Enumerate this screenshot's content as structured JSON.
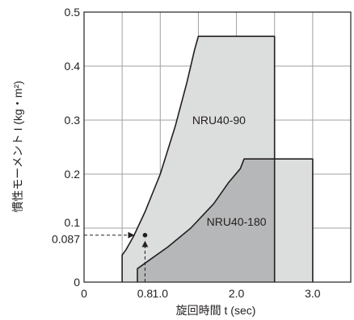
{
  "chart_data": {
    "type": "area",
    "title": "",
    "xlabel": "旋回時間 t (sec)",
    "ylabel": "慣性モーメント I (kg・m²)",
    "xlim": [
      0,
      3.5
    ],
    "ylim": [
      0,
      0.5
    ],
    "grid": true,
    "x_ticks": [
      {
        "value": 0,
        "label": "0"
      },
      {
        "value": 0.8,
        "label": "0.8"
      },
      {
        "value": 1.0,
        "label": "1.0"
      },
      {
        "value": 2.0,
        "label": "2.0"
      },
      {
        "value": 3.0,
        "label": "3.0"
      }
    ],
    "y_ticks": [
      {
        "value": 0,
        "label": "0"
      },
      {
        "value": 0.087,
        "label": "0.087"
      },
      {
        "value": 0.1,
        "label": "0.1"
      },
      {
        "value": 0.2,
        "label": "0.2"
      },
      {
        "value": 0.3,
        "label": "0.3"
      },
      {
        "value": 0.4,
        "label": "0.4"
      },
      {
        "value": 0.5,
        "label": "0.5"
      }
    ],
    "series": [
      {
        "name": "NRU40-90",
        "fill": "#dcdddd",
        "points": [
          [
            0.5,
            0
          ],
          [
            0.5,
            0.05
          ],
          [
            0.55,
            0.06
          ],
          [
            0.65,
            0.085
          ],
          [
            0.8,
            0.13
          ],
          [
            1.0,
            0.2
          ],
          [
            1.2,
            0.29
          ],
          [
            1.35,
            0.37
          ],
          [
            1.45,
            0.43
          ],
          [
            1.5,
            0.455
          ],
          [
            2.5,
            0.455
          ],
          [
            2.5,
            0
          ]
        ]
      },
      {
        "name": "NRU40-180",
        "fill": "#dcdddd",
        "points": [
          [
            0.7,
            0
          ],
          [
            0.7,
            0.025
          ],
          [
            0.85,
            0.04
          ],
          [
            1.1,
            0.065
          ],
          [
            1.4,
            0.1
          ],
          [
            1.7,
            0.145
          ],
          [
            1.9,
            0.185
          ],
          [
            2.05,
            0.21
          ],
          [
            2.1,
            0.228
          ],
          [
            3.0,
            0.228
          ],
          [
            3.0,
            0
          ]
        ]
      }
    ],
    "overlap_fill": "#b6b7b8",
    "annotation": {
      "x": 0.8,
      "y": 0.087
    }
  }
}
